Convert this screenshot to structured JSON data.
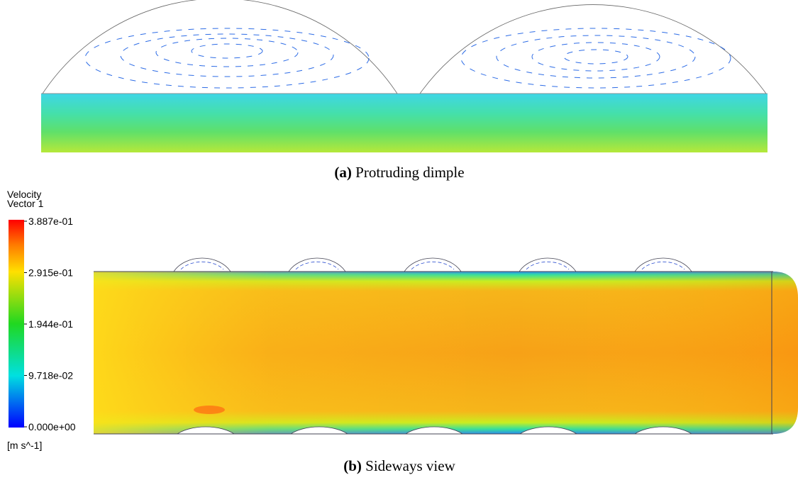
{
  "figure_a": {
    "label": "(a)",
    "caption": "Protruding dimple"
  },
  "legend": {
    "title": "Velocity",
    "subtitle": "Vector 1",
    "ticks": [
      "3.887e-01",
      "2.915e-01",
      "1.944e-01",
      "9.718e-02",
      "0.000e+00"
    ],
    "unit": "[m s^-1]"
  },
  "figure_b": {
    "label": "(b)",
    "caption": "Sideways view"
  }
}
